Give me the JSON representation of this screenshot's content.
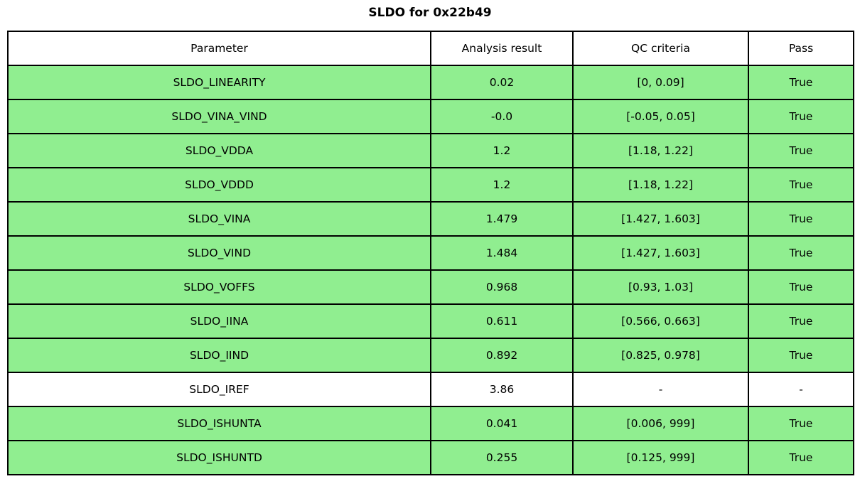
{
  "title": "SLDO for 0x22b49",
  "colors": {
    "pass_row_green": "#90EE90",
    "neutral_row_white": "#FFFFFF",
    "border_black": "#000000"
  },
  "chart_data": {
    "type": "table",
    "title": "SLDO for 0x22b49",
    "columns": [
      "Parameter",
      "Analysis result",
      "QC criteria",
      "Pass"
    ],
    "rows": [
      {
        "parameter": "SLDO_LINEARITY",
        "result": "0.02",
        "criteria": "[0, 0.09]",
        "pass": "True",
        "highlight": true
      },
      {
        "parameter": "SLDO_VINA_VIND",
        "result": "-0.0",
        "criteria": "[-0.05, 0.05]",
        "pass": "True",
        "highlight": true
      },
      {
        "parameter": "SLDO_VDDA",
        "result": "1.2",
        "criteria": "[1.18, 1.22]",
        "pass": "True",
        "highlight": true
      },
      {
        "parameter": "SLDO_VDDD",
        "result": "1.2",
        "criteria": "[1.18, 1.22]",
        "pass": "True",
        "highlight": true
      },
      {
        "parameter": "SLDO_VINA",
        "result": "1.479",
        "criteria": "[1.427, 1.603]",
        "pass": "True",
        "highlight": true
      },
      {
        "parameter": "SLDO_VIND",
        "result": "1.484",
        "criteria": "[1.427, 1.603]",
        "pass": "True",
        "highlight": true
      },
      {
        "parameter": "SLDO_VOFFS",
        "result": "0.968",
        "criteria": "[0.93, 1.03]",
        "pass": "True",
        "highlight": true
      },
      {
        "parameter": "SLDO_IINA",
        "result": "0.611",
        "criteria": "[0.566, 0.663]",
        "pass": "True",
        "highlight": true
      },
      {
        "parameter": "SLDO_IIND",
        "result": "0.892",
        "criteria": "[0.825, 0.978]",
        "pass": "True",
        "highlight": true
      },
      {
        "parameter": "SLDO_IREF",
        "result": "3.86",
        "criteria": "-",
        "pass": "-",
        "highlight": false
      },
      {
        "parameter": "SLDO_ISHUNTA",
        "result": "0.041",
        "criteria": "[0.006, 999]",
        "pass": "True",
        "highlight": true
      },
      {
        "parameter": "SLDO_ISHUNTD",
        "result": "0.255",
        "criteria": "[0.125, 999]",
        "pass": "True",
        "highlight": true
      }
    ]
  }
}
